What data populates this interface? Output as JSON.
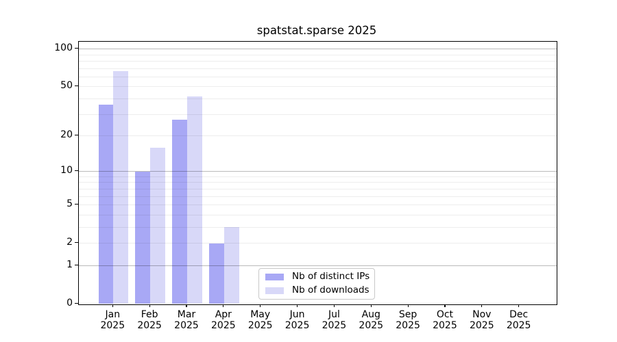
{
  "chart_data": {
    "type": "bar",
    "title": "spatstat.sparse 2025",
    "year_label": "2025",
    "categories": [
      "Jan",
      "Feb",
      "Mar",
      "Apr",
      "May",
      "Jun",
      "Jul",
      "Aug",
      "Sep",
      "Oct",
      "Nov",
      "Dec"
    ],
    "series": [
      {
        "name": "Nb of distinct IPs",
        "color": "#a8a8f5",
        "values": [
          36,
          10,
          27,
          2,
          0,
          0,
          0,
          0,
          0,
          0,
          0,
          0
        ]
      },
      {
        "name": "Nb of downloads",
        "color": "#d8d8f8",
        "values": [
          67,
          16,
          42,
          3,
          0,
          0,
          0,
          0,
          0,
          0,
          0,
          0
        ]
      }
    ],
    "y_scale": "log10(1+x)",
    "y_ticks": [
      0,
      1,
      2,
      5,
      10,
      20,
      50,
      100
    ],
    "y_grid_major": [
      1,
      10,
      100
    ],
    "y_grid_minor": [
      2,
      3,
      4,
      5,
      6,
      7,
      8,
      9,
      20,
      30,
      40,
      50,
      60,
      70,
      80,
      90
    ],
    "ylim": [
      0,
      115
    ],
    "xlabel": "",
    "ylabel": "",
    "legend_position": "bottom-center",
    "grid": "on"
  }
}
